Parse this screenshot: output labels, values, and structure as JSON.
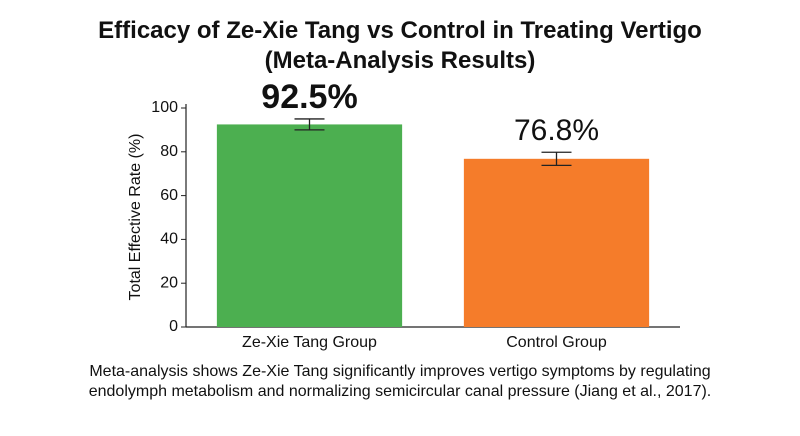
{
  "chart_data": {
    "type": "bar",
    "title": "Efficacy of Ze-Xie Tang vs Control in Treating Vertigo (Meta-Analysis Results)",
    "y_label": "Total Effective Rate (%)",
    "categories": [
      "Ze-Xie Tang Group",
      "Control Group"
    ],
    "values": [
      92.5,
      76.8
    ],
    "value_labels": [
      "92.5%",
      "76.8%"
    ],
    "errors": [
      2.5,
      3
    ],
    "colors": [
      "#4caf50",
      "#f57c2a"
    ],
    "ylim": [
      0,
      100
    ],
    "yticks": [
      0,
      20,
      40,
      60,
      80,
      100
    ],
    "caption": "Meta-analysis shows Ze-Xie Tang significantly improves vertigo symptoms by regulating endolymph metabolism and normalizing semicircular canal pressure (Jiang et al., 2017)."
  }
}
